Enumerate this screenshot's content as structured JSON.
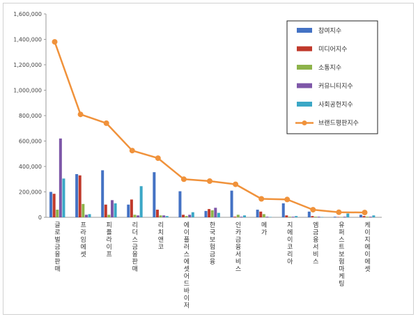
{
  "chart_data": {
    "type": "bar",
    "ylim": [
      0,
      1600000
    ],
    "yticks": [
      "0",
      "200,000",
      "400,000",
      "600,000",
      "800,000",
      "1,000,000",
      "1,200,000",
      "1,400,000",
      "1,600,000"
    ],
    "ytick_values": [
      0,
      200000,
      400000,
      600000,
      800000,
      1000000,
      1200000,
      1400000,
      1600000
    ],
    "grid": false,
    "legend_position": "top-right",
    "categories": [
      "글로벌금융판매",
      "프라임에셋",
      "피플라이프",
      "리더스금융판매",
      "리치앤코",
      "에이플러스에셋어드바이저",
      "한국보험금융",
      "인카금융서비스",
      "메가",
      "지에이코리아",
      "엠금융서비스",
      "유퍼스트보험마케팅",
      "케이지에이에셋"
    ],
    "series": [
      {
        "name": "참여지수",
        "type": "bar",
        "color": "#4472C4",
        "values": [
          200000,
          340000,
          370000,
          100000,
          355000,
          205000,
          50000,
          210000,
          60000,
          110000,
          45000,
          5000,
          20000
        ]
      },
      {
        "name": "미디어지수",
        "type": "bar",
        "color": "#C0392B",
        "values": [
          185000,
          330000,
          100000,
          140000,
          60000,
          20000,
          65000,
          5000,
          45000,
          15000,
          10000,
          3000,
          10000
        ]
      },
      {
        "name": "소통지수",
        "type": "bar",
        "color": "#8DB34A",
        "values": [
          60000,
          105000,
          20000,
          20000,
          15000,
          10000,
          55000,
          20000,
          25000,
          5000,
          5000,
          3000,
          5000
        ]
      },
      {
        "name": "커뮤니티지수",
        "type": "bar",
        "color": "#7E57A8",
        "values": [
          620000,
          20000,
          135000,
          15000,
          15000,
          20000,
          75000,
          5000,
          5000,
          5000,
          5000,
          5000,
          5000
        ]
      },
      {
        "name": "사회공헌지수",
        "type": "bar",
        "color": "#3BA7C6",
        "values": [
          305000,
          25000,
          110000,
          245000,
          10000,
          40000,
          35000,
          15000,
          3000,
          10000,
          3000,
          30000,
          15000
        ]
      },
      {
        "name": "브랜드평판지수",
        "type": "line",
        "color": "#F0923B",
        "values": [
          1380000,
          810000,
          740000,
          525000,
          465000,
          300000,
          285000,
          260000,
          145000,
          140000,
          60000,
          40000,
          38000
        ]
      }
    ]
  }
}
